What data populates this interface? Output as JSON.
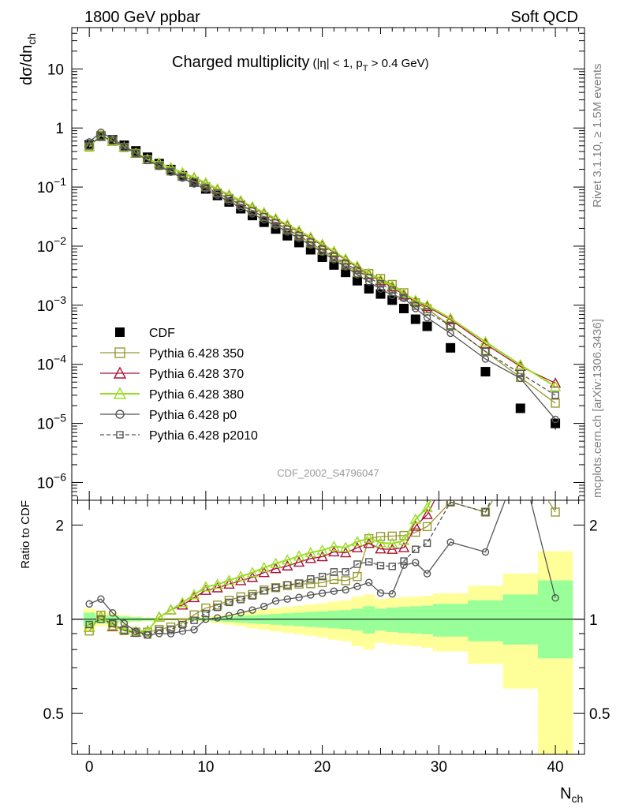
{
  "header": {
    "left": "1800 GeV ppbar",
    "right": "Soft QCD"
  },
  "side_labels": {
    "rivet": "Rivet 3.1.10, ≥ 1.5M events",
    "mcplots": "mcplots.cern.ch [arXiv:1306.3436]"
  },
  "analysis_id": "CDF_2002_S4796047",
  "chart_data": [
    {
      "type": "scatter",
      "title": "Charged multiplicity",
      "subtitle_parts": [
        "(|η| < 1, p",
        "T",
        " > 0.4 GeV)"
      ],
      "ylabel": "dσ/dn",
      "ylabel_sub": "ch",
      "yscale": "log",
      "ylim": [
        5e-07,
        50
      ],
      "xlim": [
        -1.5,
        42.5
      ],
      "y_tick_labels": [
        {
          "v": 10,
          "label": "10"
        },
        {
          "v": 1,
          "label": "1"
        },
        {
          "v": 0.1,
          "base": "10",
          "exp": "−1"
        },
        {
          "v": 0.01,
          "base": "10",
          "exp": "−2"
        },
        {
          "v": 0.001,
          "base": "10",
          "exp": "−3"
        },
        {
          "v": 0.0001,
          "base": "10",
          "exp": "−4"
        },
        {
          "v": 1e-05,
          "base": "10",
          "exp": "−5"
        },
        {
          "v": 1e-06,
          "base": "10",
          "exp": "−6"
        }
      ],
      "series": [
        {
          "name": "CDF",
          "color": "#000000",
          "marker": "filled-square",
          "x": [
            0,
            1,
            2,
            3,
            4,
            5,
            6,
            7,
            8,
            9,
            10,
            11,
            12,
            13,
            14,
            15,
            16,
            17,
            18,
            19,
            20,
            21,
            22,
            23,
            24,
            25,
            26,
            27,
            28,
            29,
            31,
            34,
            37,
            40
          ],
          "y": [
            0.52,
            0.73,
            0.63,
            0.51,
            0.41,
            0.32,
            0.25,
            0.198,
            0.155,
            0.122,
            0.093,
            0.072,
            0.056,
            0.043,
            0.033,
            0.0254,
            0.0195,
            0.015,
            0.0115,
            0.0087,
            0.0065,
            0.0048,
            0.0036,
            0.0026,
            0.0019,
            0.00155,
            0.00122,
            0.00088,
            0.00058,
            0.00044,
            0.00019,
            7.5e-05,
            1.8e-05,
            1e-05
          ],
          "yerr_rel": [
            0,
            0,
            0,
            0,
            0,
            0,
            0,
            0,
            0,
            0,
            0,
            0,
            0,
            0,
            0,
            0,
            0,
            0,
            0,
            0,
            0,
            0,
            0,
            0,
            0,
            0,
            0,
            0,
            0,
            0,
            0,
            0,
            0,
            0.22
          ]
        },
        {
          "name": "Pythia 6.428 350",
          "color": "#999933",
          "marker": "open-square",
          "x": [
            0,
            1,
            2,
            3,
            4,
            5,
            6,
            7,
            8,
            9,
            10,
            11,
            12,
            13,
            14,
            15,
            16,
            17,
            18,
            19,
            20,
            21,
            22,
            23,
            24,
            25,
            26,
            27,
            28,
            29,
            31,
            34,
            37,
            40
          ],
          "y": [
            0.477,
            0.752,
            0.602,
            0.469,
            0.373,
            0.291,
            0.232,
            0.187,
            0.151,
            0.126,
            0.101,
            0.0799,
            0.0644,
            0.0507,
            0.0396,
            0.0315,
            0.0246,
            0.0192,
            0.0149,
            0.0113,
            0.00851,
            0.00643,
            0.00478,
            0.00356,
            0.00344,
            0.00285,
            0.00225,
            0.00163,
            0.0011,
            0.00087,
            0.00045,
            0.000165,
            6e-05,
            2.2e-05
          ]
        },
        {
          "name": "Pythia 6.428 370",
          "color": "#aa1133",
          "marker": "open-triangle",
          "x": [
            0,
            1,
            2,
            3,
            4,
            5,
            6,
            7,
            8,
            9,
            10,
            11,
            12,
            13,
            14,
            15,
            16,
            17,
            18,
            19,
            20,
            21,
            22,
            23,
            24,
            25,
            26,
            27,
            28,
            29,
            31,
            34,
            37,
            40
          ],
          "y": [
            0.49,
            0.745,
            0.596,
            0.474,
            0.373,
            0.294,
            0.254,
            0.212,
            0.172,
            0.143,
            0.115,
            0.0907,
            0.0725,
            0.0571,
            0.0449,
            0.0358,
            0.0283,
            0.0222,
            0.0175,
            0.0136,
            0.0103,
            0.00788,
            0.00587,
            0.0044,
            0.00332,
            0.0026,
            0.00204,
            0.00149,
            0.00115,
            0.00095,
            0.00057,
            0.00022,
            9.2e-05,
            4.8e-05
          ]
        },
        {
          "name": "Pythia 6.428 380",
          "color": "#99dd22",
          "marker": "open-triangle",
          "x": [
            0,
            1,
            2,
            3,
            4,
            5,
            6,
            7,
            8,
            9,
            10,
            11,
            12,
            13,
            14,
            15,
            16,
            17,
            18,
            19,
            20,
            21,
            22,
            23,
            24,
            25,
            26,
            27,
            28,
            29,
            31,
            34,
            37,
            40
          ],
          "y": [
            0.49,
            0.745,
            0.6,
            0.474,
            0.375,
            0.294,
            0.254,
            0.212,
            0.175,
            0.146,
            0.118,
            0.093,
            0.0745,
            0.0589,
            0.0465,
            0.0371,
            0.0294,
            0.0232,
            0.0183,
            0.0142,
            0.0108,
            0.0082,
            0.0061,
            0.0046,
            0.00345,
            0.00272,
            0.00213,
            0.00157,
            0.00121,
            0.001,
            0.0006,
            0.00024,
            9.8e-05,
            4.2e-05
          ]
        },
        {
          "name": "Pythia 6.428 p0",
          "color": "#555555",
          "marker": "open-circle",
          "x": [
            0,
            1,
            2,
            3,
            4,
            5,
            6,
            7,
            8,
            9,
            10,
            11,
            12,
            13,
            14,
            15,
            16,
            17,
            18,
            19,
            20,
            21,
            22,
            23,
            24,
            25,
            26,
            27,
            28,
            29,
            31,
            34,
            37,
            40
          ],
          "y": [
            0.582,
            0.847,
            0.66,
            0.495,
            0.375,
            0.285,
            0.225,
            0.178,
            0.142,
            0.113,
            0.093,
            0.0727,
            0.0575,
            0.0451,
            0.0353,
            0.0279,
            0.0223,
            0.0174,
            0.0135,
            0.0104,
            0.00787,
            0.0059,
            0.00447,
            0.00331,
            0.00249,
            0.00188,
            0.00147,
            0.00131,
            0.00088,
            0.000615,
            0.000335,
            0.000123,
            5.8e-05,
            1.17e-05
          ]
        },
        {
          "name": "Pythia 6.428 p2010",
          "color": "#555555",
          "marker": "open-square",
          "dashed": true,
          "x": [
            0,
            1,
            2,
            3,
            4,
            5,
            6,
            7,
            8,
            9,
            10,
            11,
            12,
            13,
            14,
            15,
            16,
            17,
            18,
            19,
            20,
            21,
            22,
            23,
            24,
            25,
            26,
            27,
            28,
            29,
            31,
            34,
            37,
            40
          ],
          "y": [
            0.5,
            0.73,
            0.61,
            0.47,
            0.37,
            0.285,
            0.23,
            0.184,
            0.149,
            0.121,
            0.097,
            0.0786,
            0.0634,
            0.0497,
            0.0392,
            0.0313,
            0.0246,
            0.0193,
            0.015,
            0.0117,
            0.0089,
            0.0068,
            0.0051,
            0.0039,
            0.0029,
            0.0023,
            0.0018,
            0.00135,
            0.00097,
            0.00077,
            0.00045,
            0.000165,
            7e-05,
            3e-05
          ]
        }
      ]
    },
    {
      "type": "line",
      "ylabel": "Ratio to CDF",
      "xlabel": "N",
      "xlabel_sub": "ch",
      "ylim": [
        0.37,
        2.4
      ],
      "xlim": [
        -1.5,
        42.5
      ],
      "x_tick_labels": [
        0,
        10,
        20,
        30,
        40
      ],
      "y_tick_labels": [
        "0.5",
        "1",
        "2"
      ],
      "y_tick_values": [
        0.5,
        1,
        2
      ],
      "uncertainty_bands": {
        "x": [
          -0.5,
          0.5,
          1.5,
          2.5,
          3.5,
          4.5,
          5.5,
          6.5,
          7.5,
          8.5,
          9.5,
          10.5,
          11.5,
          12.5,
          13.5,
          14.5,
          15.5,
          16.5,
          17.5,
          18.5,
          19.5,
          20.5,
          21.5,
          22.5,
          23.5,
          24.5,
          25.5,
          26.5,
          27.5,
          28.5,
          29.5,
          32.5,
          35.5,
          38.5,
          41.5
        ],
        "stat_color": "#99ff99",
        "total_color": "#ffff99",
        "stat_lo": [
          0.95,
          0.97,
          0.97,
          0.98,
          0.985,
          0.99,
          0.995,
          0.995,
          0.995,
          0.99,
          0.99,
          0.985,
          0.98,
          0.975,
          0.97,
          0.965,
          0.96,
          0.955,
          0.95,
          0.945,
          0.94,
          0.935,
          0.93,
          0.92,
          0.9,
          0.92,
          0.91,
          0.905,
          0.9,
          0.895,
          0.88,
          0.85,
          0.83,
          0.75
        ],
        "stat_hi": [
          1.05,
          1.03,
          1.03,
          1.02,
          1.015,
          1.01,
          1.005,
          1.005,
          1.005,
          1.01,
          1.01,
          1.015,
          1.02,
          1.025,
          1.03,
          1.035,
          1.04,
          1.045,
          1.05,
          1.055,
          1.06,
          1.065,
          1.07,
          1.08,
          1.1,
          1.08,
          1.09,
          1.095,
          1.1,
          1.105,
          1.12,
          1.15,
          1.2,
          1.33
        ],
        "tot_lo": [
          0.92,
          0.95,
          0.95,
          0.97,
          0.98,
          0.985,
          0.99,
          0.99,
          0.99,
          0.985,
          0.98,
          0.97,
          0.96,
          0.95,
          0.935,
          0.925,
          0.915,
          0.905,
          0.895,
          0.885,
          0.875,
          0.86,
          0.85,
          0.82,
          0.8,
          0.84,
          0.83,
          0.825,
          0.82,
          0.81,
          0.79,
          0.72,
          0.6,
          0.37
        ],
        "tot_hi": [
          1.08,
          1.05,
          1.05,
          1.03,
          1.02,
          1.015,
          1.01,
          1.01,
          1.01,
          1.015,
          1.02,
          1.03,
          1.04,
          1.05,
          1.065,
          1.075,
          1.085,
          1.095,
          1.105,
          1.115,
          1.125,
          1.14,
          1.15,
          1.18,
          1.2,
          1.16,
          1.17,
          1.175,
          1.18,
          1.19,
          1.21,
          1.28,
          1.4,
          1.65
        ]
      }
    }
  ]
}
